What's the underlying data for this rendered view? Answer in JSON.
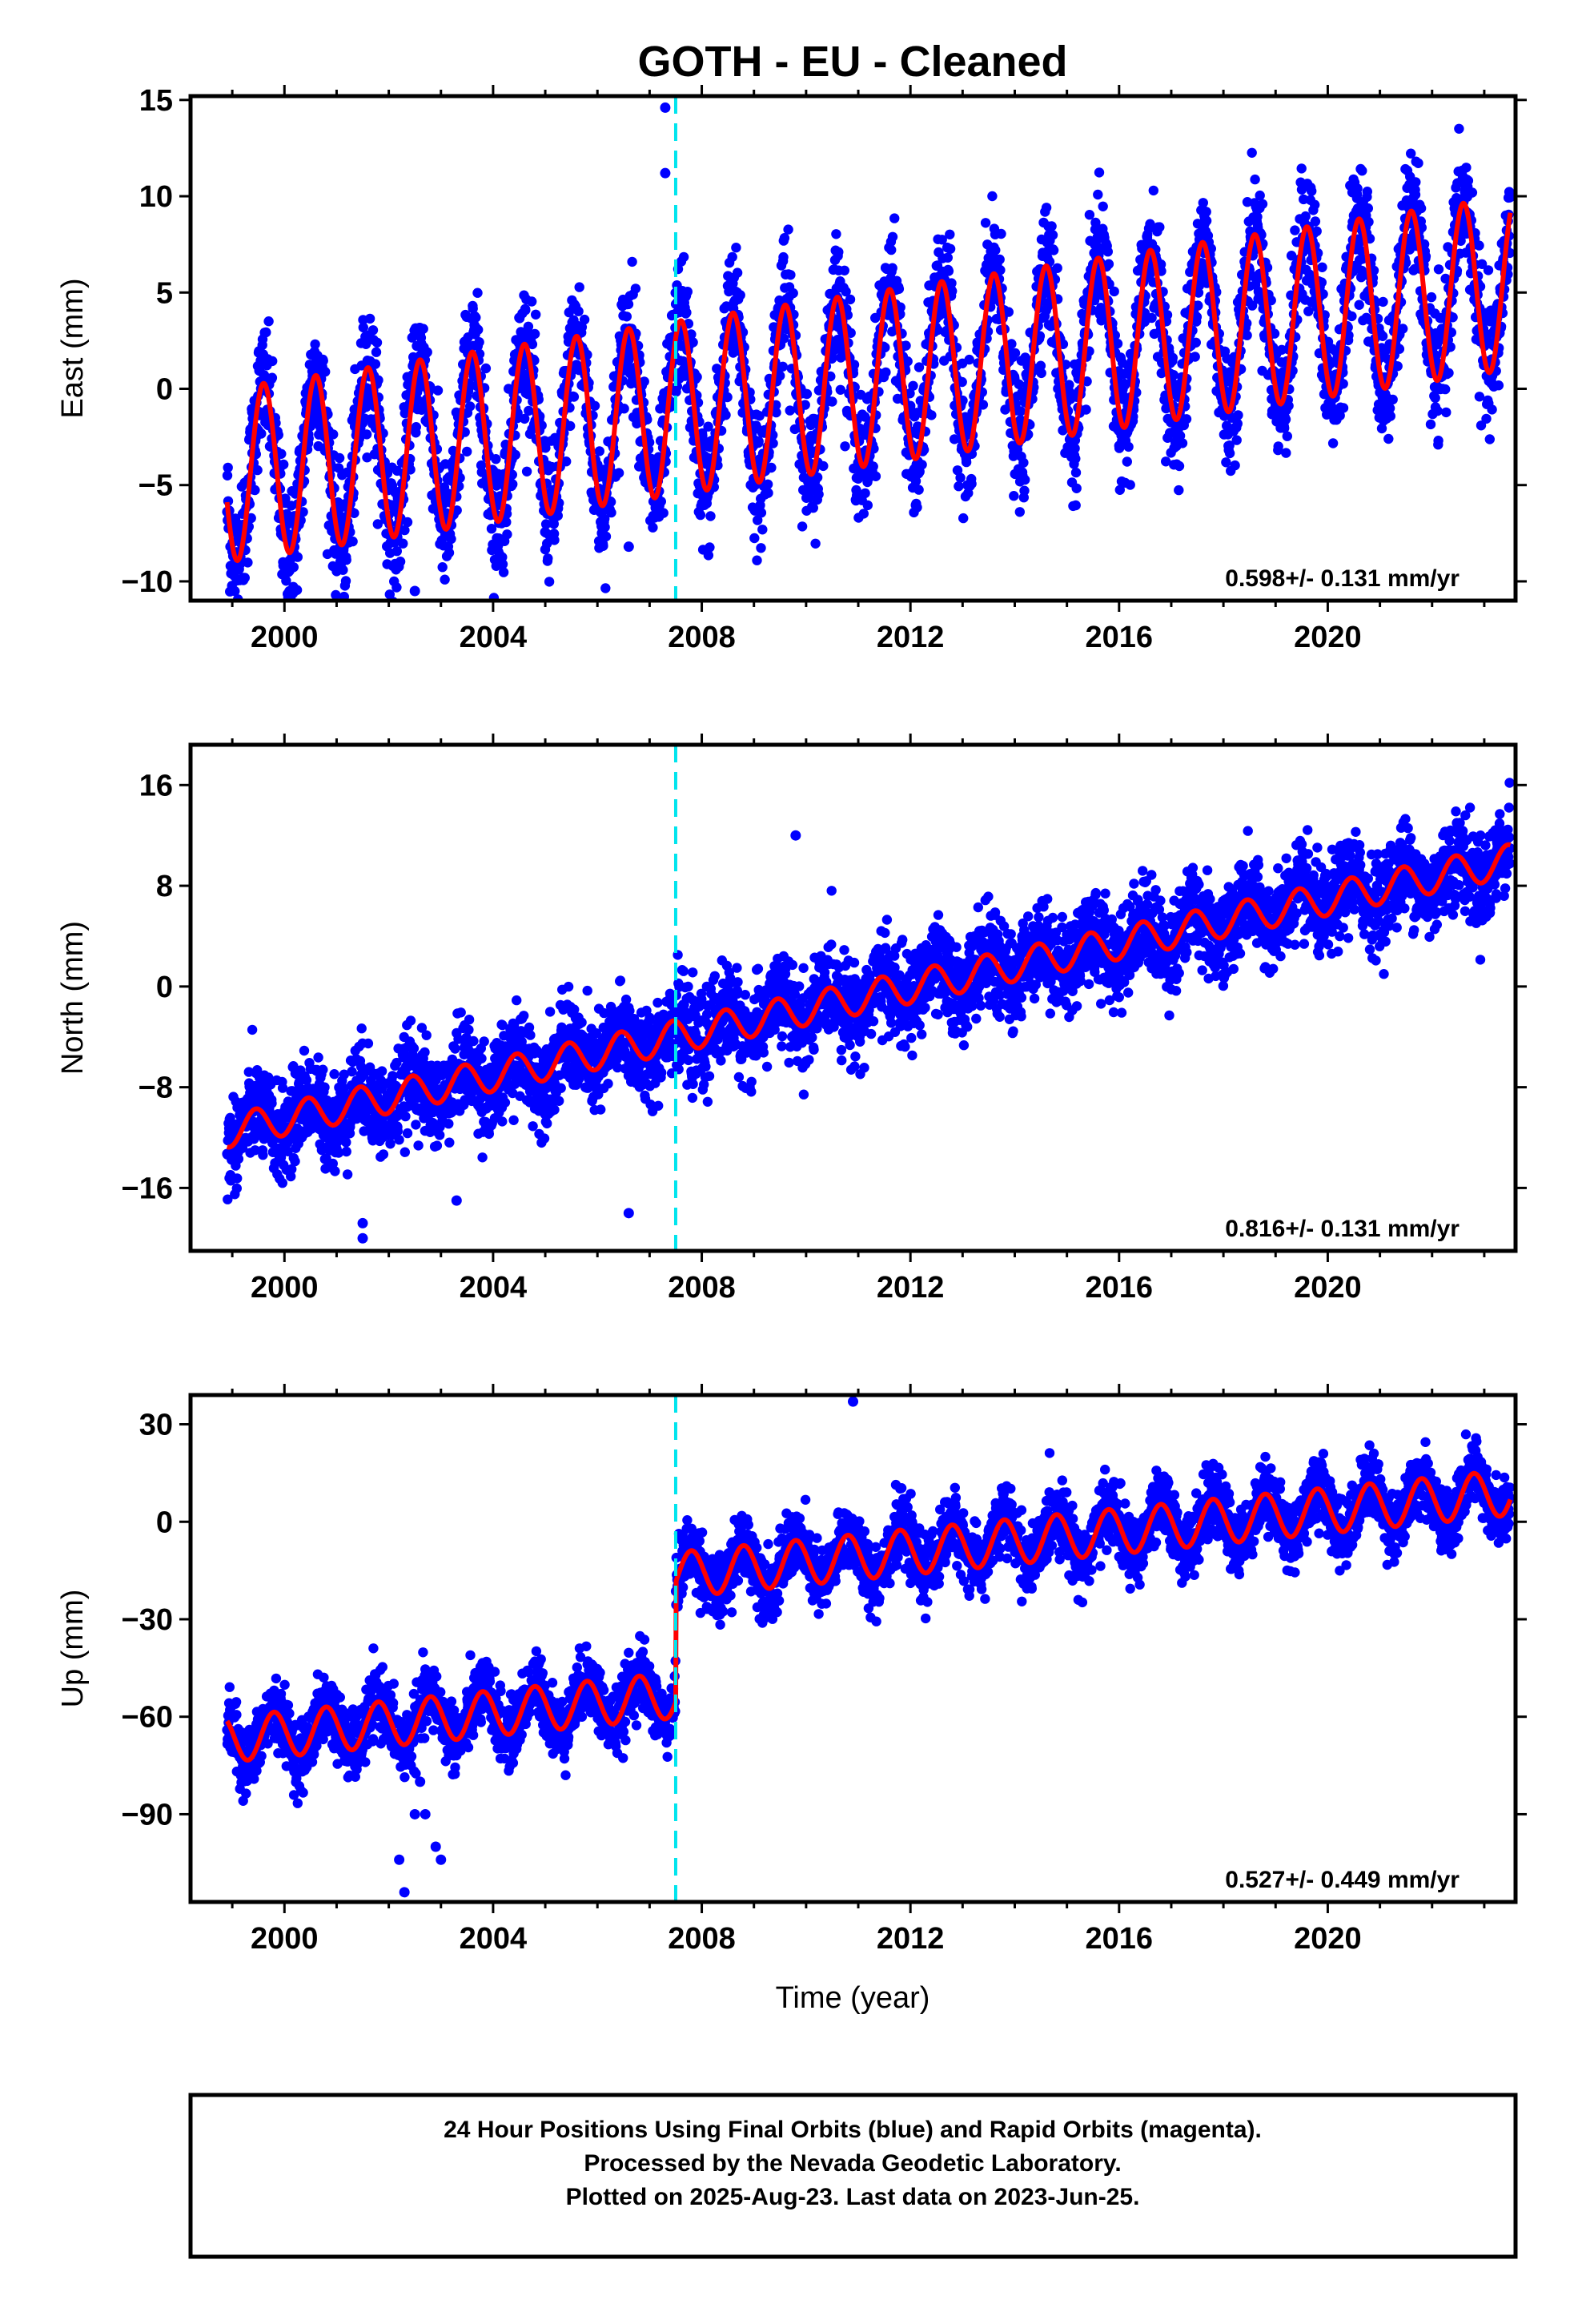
{
  "title": "GOTH  - EU - Cleaned",
  "xlabel": "Time (year)",
  "footer": {
    "line1": "24 Hour Positions Using Final Orbits (blue) and Rapid Orbits (magenta).",
    "line2": "Processed by the Nevada Geodetic Laboratory.",
    "line3": "Plotted on 2025-Aug-23. Last data on 2023-Jun-25."
  },
  "colors": {
    "points": "#0000ff",
    "model": "#ff0000",
    "break_line": "#00e5ee",
    "frame": "#000000"
  },
  "chart_data": [
    {
      "type": "scatter",
      "component": "East",
      "ylabel": "East (mm)",
      "xlim": [
        1998.2,
        2023.6
      ],
      "ylim": [
        -11.0,
        15.2
      ],
      "xticks": [
        2000,
        2004,
        2008,
        2012,
        2016,
        2020
      ],
      "yticks": [
        15,
        10,
        5,
        0,
        -5,
        -10
      ],
      "rate_label": "0.598+/- 0.131 mm/yr",
      "break_epoch": 2007.5,
      "x_range": [
        1998.9,
        2023.5
      ],
      "model": {
        "trend_start": -4.5,
        "trend_end": 5.5,
        "offset_at_break": 0,
        "amp": 4.5,
        "phase_year": 0.35,
        "sigma": 1.6
      },
      "outliers": [
        {
          "x": 2007.3,
          "y": 14.6
        },
        {
          "x": 2007.3,
          "y": 11.2
        },
        {
          "x": 2002.5,
          "y": -10.5
        },
        {
          "x": 2006.6,
          "y": -8.2
        }
      ]
    },
    {
      "type": "scatter",
      "component": "North",
      "ylabel": "North (mm)",
      "xlim": [
        1998.2,
        2023.6
      ],
      "ylim": [
        -21.0,
        19.2
      ],
      "xticks": [
        2000,
        2004,
        2008,
        2012,
        2016,
        2020
      ],
      "yticks": [
        16,
        8,
        0,
        -8,
        -16
      ],
      "rate_label": "0.816+/- 0.131 mm/yr",
      "break_epoch": 2007.5,
      "x_range": [
        1998.9,
        2023.5
      ],
      "model": {
        "trend_start": -11.5,
        "trend_end": 10.0,
        "offset_at_break": 0,
        "amp": 1.3,
        "phase_year": 0.2,
        "sigma": 1.8
      },
      "outliers": [
        {
          "x": 2009.8,
          "y": 12.0
        },
        {
          "x": 2001.5,
          "y": -20.0
        },
        {
          "x": 2001.5,
          "y": -18.8
        },
        {
          "x": 2006.6,
          "y": -18.0
        },
        {
          "x": 2003.3,
          "y": -17.0
        }
      ]
    },
    {
      "type": "scatter",
      "component": "Up",
      "ylabel": "Up (mm)",
      "xlim": [
        1998.2,
        2023.6
      ],
      "ylim": [
        -117,
        39
      ],
      "xticks": [
        2000,
        2004,
        2008,
        2012,
        2016,
        2020
      ],
      "yticks": [
        30,
        0,
        -30,
        -60,
        -90
      ],
      "rate_label": "0.527+/- 0.449 mm/yr",
      "break_epoch": 2007.5,
      "x_range": [
        1998.9,
        2023.5
      ],
      "model": {
        "trend_start": -30,
        "trend_end": 9,
        "offset_at_break": 37,
        "amp": 7.0,
        "phase_year": 0.55,
        "sigma": 5.0
      },
      "outliers": [
        {
          "x": 2002.6,
          "y": -80
        },
        {
          "x": 2002.5,
          "y": -90
        },
        {
          "x": 2002.7,
          "y": -90
        },
        {
          "x": 2002.2,
          "y": -104
        },
        {
          "x": 2002.9,
          "y": -100
        },
        {
          "x": 2003.0,
          "y": -104
        },
        {
          "x": 2002.3,
          "y": -114
        },
        {
          "x": 2005.9,
          "y": -54
        },
        {
          "x": 2010.9,
          "y": 37
        }
      ]
    }
  ]
}
